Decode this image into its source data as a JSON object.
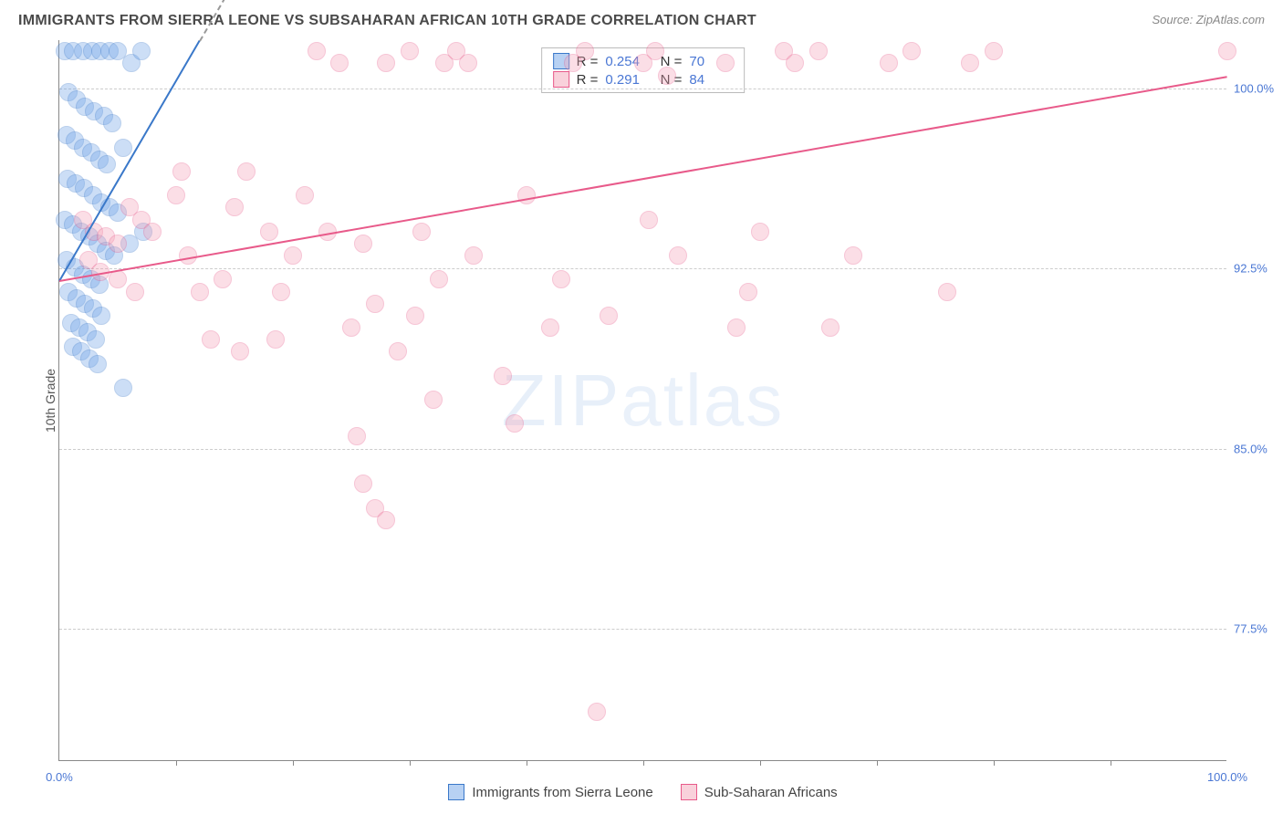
{
  "header": {
    "title": "IMMIGRANTS FROM SIERRA LEONE VS SUBSAHARAN AFRICAN 10TH GRADE CORRELATION CHART",
    "source_prefix": "Source: ",
    "source_name": "ZipAtlas.com"
  },
  "chart": {
    "type": "scatter",
    "ylabel": "10th Grade",
    "watermark": "ZIPatlas",
    "background_color": "#ffffff",
    "grid_color": "#cccccc",
    "axis_color": "#888888",
    "xlim": [
      0,
      100
    ],
    "ylim": [
      72,
      102
    ],
    "yticks": [
      {
        "v": 77.5,
        "label": "77.5%"
      },
      {
        "v": 85.0,
        "label": "85.0%"
      },
      {
        "v": 92.5,
        "label": "92.5%"
      },
      {
        "v": 100.0,
        "label": "100.0%"
      }
    ],
    "xticks_major": [
      0,
      100
    ],
    "xticks_minor": [
      10,
      20,
      30,
      40,
      50,
      60,
      70,
      80,
      90
    ],
    "xtick_labels": {
      "0": "0.0%",
      "100": "100.0%"
    },
    "marker_radius": 10,
    "marker_opacity": 0.35,
    "series": [
      {
        "id": "sierra_leone",
        "label": "Immigrants from Sierra Leone",
        "color_fill": "#6fa3e8",
        "color_stroke": "#3a78c9",
        "R": 0.254,
        "N": 70,
        "trend": {
          "x1": 0,
          "y1": 92.0,
          "x2": 12,
          "y2": 102.0,
          "dash_extend": true
        },
        "points": [
          [
            0.5,
            101.5
          ],
          [
            1.2,
            101.5
          ],
          [
            2.0,
            101.5
          ],
          [
            2.8,
            101.5
          ],
          [
            3.5,
            101.5
          ],
          [
            4.3,
            101.5
          ],
          [
            5.0,
            101.5
          ],
          [
            6.2,
            101.0
          ],
          [
            7.0,
            101.5
          ],
          [
            0.8,
            99.8
          ],
          [
            1.5,
            99.5
          ],
          [
            2.2,
            99.2
          ],
          [
            3.0,
            99.0
          ],
          [
            3.8,
            98.8
          ],
          [
            4.5,
            98.5
          ],
          [
            0.6,
            98.0
          ],
          [
            1.3,
            97.8
          ],
          [
            2.0,
            97.5
          ],
          [
            2.7,
            97.3
          ],
          [
            3.4,
            97.0
          ],
          [
            4.1,
            96.8
          ],
          [
            5.5,
            97.5
          ],
          [
            0.7,
            96.2
          ],
          [
            1.4,
            96.0
          ],
          [
            2.1,
            95.8
          ],
          [
            2.9,
            95.5
          ],
          [
            3.6,
            95.2
          ],
          [
            4.3,
            95.0
          ],
          [
            5.0,
            94.8
          ],
          [
            0.5,
            94.5
          ],
          [
            1.2,
            94.3
          ],
          [
            1.9,
            94.0
          ],
          [
            2.6,
            93.8
          ],
          [
            3.3,
            93.5
          ],
          [
            4.0,
            93.2
          ],
          [
            4.7,
            93.0
          ],
          [
            6.0,
            93.5
          ],
          [
            7.2,
            94.0
          ],
          [
            0.6,
            92.8
          ],
          [
            1.3,
            92.5
          ],
          [
            2.0,
            92.2
          ],
          [
            2.7,
            92.0
          ],
          [
            3.4,
            91.8
          ],
          [
            0.8,
            91.5
          ],
          [
            1.5,
            91.2
          ],
          [
            2.2,
            91.0
          ],
          [
            2.9,
            90.8
          ],
          [
            3.6,
            90.5
          ],
          [
            1.0,
            90.2
          ],
          [
            1.7,
            90.0
          ],
          [
            2.4,
            89.8
          ],
          [
            3.1,
            89.5
          ],
          [
            1.2,
            89.2
          ],
          [
            1.9,
            89.0
          ],
          [
            2.6,
            88.7
          ],
          [
            3.3,
            88.5
          ],
          [
            5.5,
            87.5
          ]
        ]
      },
      {
        "id": "subsaharan",
        "label": "Sub-Saharan Africans",
        "color_fill": "#f4a3b8",
        "color_stroke": "#e85a8a",
        "R": 0.291,
        "N": 84,
        "trend": {
          "x1": 0,
          "y1": 92.0,
          "x2": 100,
          "y2": 100.5,
          "dash_extend": false
        },
        "points": [
          [
            2,
            94.5
          ],
          [
            3,
            94.0
          ],
          [
            4,
            93.8
          ],
          [
            5,
            93.5
          ],
          [
            2.5,
            92.8
          ],
          [
            3.5,
            92.3
          ],
          [
            6,
            95.0
          ],
          [
            7,
            94.5
          ],
          [
            8,
            94.0
          ],
          [
            5,
            92.0
          ],
          [
            6.5,
            91.5
          ],
          [
            10,
            95.5
          ],
          [
            11,
            93.0
          ],
          [
            12,
            91.5
          ],
          [
            13,
            89.5
          ],
          [
            10.5,
            96.5
          ],
          [
            15,
            95.0
          ],
          [
            14,
            92.0
          ],
          [
            15.5,
            89.0
          ],
          [
            16,
            96.5
          ],
          [
            18,
            94.0
          ],
          [
            19,
            91.5
          ],
          [
            20,
            93.0
          ],
          [
            18.5,
            89.5
          ],
          [
            21,
            95.5
          ],
          [
            22,
            101.5
          ],
          [
            24,
            101.0
          ],
          [
            23,
            94.0
          ],
          [
            25,
            90.0
          ],
          [
            26,
            93.5
          ],
          [
            27,
            91.0
          ],
          [
            28,
            101.0
          ],
          [
            29,
            89.0
          ],
          [
            25.5,
            85.5
          ],
          [
            30,
            101.5
          ],
          [
            31,
            94.0
          ],
          [
            32,
            87.0
          ],
          [
            33,
            101.0
          ],
          [
            34,
            101.5
          ],
          [
            35,
            101.0
          ],
          [
            30.5,
            90.5
          ],
          [
            32.5,
            92.0
          ],
          [
            35.5,
            93.0
          ],
          [
            26,
            83.5
          ],
          [
            27,
            82.5
          ],
          [
            28,
            82.0
          ],
          [
            38,
            88.0
          ],
          [
            39,
            86.0
          ],
          [
            40,
            95.5
          ],
          [
            42,
            90.0
          ],
          [
            43,
            92.0
          ],
          [
            44,
            101.0
          ],
          [
            45,
            101.5
          ],
          [
            46,
            74.0
          ],
          [
            47,
            90.5
          ],
          [
            50,
            101.0
          ],
          [
            51,
            101.5
          ],
          [
            52,
            100.5
          ],
          [
            50.5,
            94.5
          ],
          [
            53,
            93.0
          ],
          [
            57,
            101.0
          ],
          [
            58,
            90.0
          ],
          [
            59,
            91.5
          ],
          [
            60,
            94.0
          ],
          [
            62,
            101.5
          ],
          [
            63,
            101.0
          ],
          [
            65,
            101.5
          ],
          [
            66,
            90.0
          ],
          [
            68,
            93.0
          ],
          [
            71,
            101.0
          ],
          [
            73,
            101.5
          ],
          [
            76,
            91.5
          ],
          [
            78,
            101.0
          ],
          [
            80,
            101.5
          ],
          [
            100,
            101.5
          ]
        ]
      }
    ],
    "legend_top": {
      "r_label": "R =",
      "n_label": "N ="
    }
  }
}
